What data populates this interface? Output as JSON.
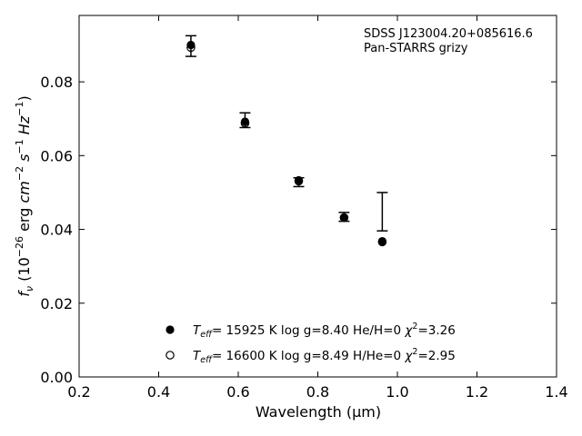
{
  "chart_data": {
    "type": "scatter",
    "annotations": [
      "SDSS J123004.20+085616.6",
      "Pan-STARRS grizy"
    ],
    "xlabel": "Wavelength (μm)",
    "ylabel": "f_ν (10^-26 erg cm^-2 s^-1 Hz^-1)",
    "xlim": [
      0.2,
      1.4
    ],
    "ylim": [
      0.0,
      0.098
    ],
    "xticks": [
      "0.2",
      "0.4",
      "0.6",
      "0.8",
      "1.0",
      "1.2",
      "1.4"
    ],
    "yticks": [
      "0.00",
      "0.02",
      "0.04",
      "0.06",
      "0.08"
    ],
    "grid": false,
    "legend_position": "bottom-center",
    "observed": {
      "x": [
        0.481,
        0.617,
        0.752,
        0.866,
        0.962
      ],
      "y": [
        0.0897,
        0.0696,
        0.0528,
        0.0434,
        0.0448
      ],
      "yerr": [
        0.0028,
        0.002,
        0.0012,
        0.0012,
        0.0052
      ]
    },
    "series": [
      {
        "name": "T_eff= 15925 K  log g=8.40  He/H=0  χ²=3.26",
        "marker": "filled-circle",
        "x": [
          0.481,
          0.617,
          0.752,
          0.866,
          0.962
        ],
        "y": [
          0.09,
          0.0692,
          0.0533,
          0.0432,
          0.0368
        ]
      },
      {
        "name": "T_eff= 16600 K  log g=8.49  H/He=0  χ²=2.95",
        "marker": "open-circle",
        "x": [
          0.481,
          0.617,
          0.752,
          0.866,
          0.962
        ],
        "y": [
          0.0893,
          0.0688,
          0.0531,
          0.0432,
          0.0366
        ]
      }
    ]
  }
}
